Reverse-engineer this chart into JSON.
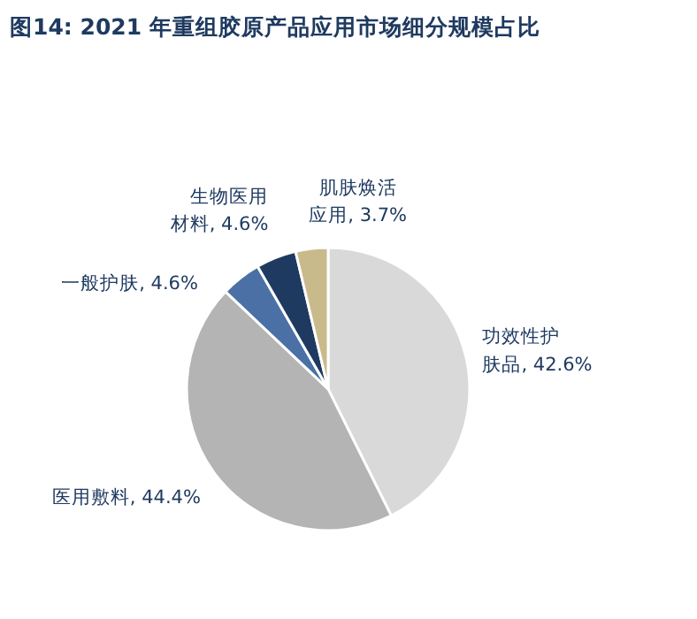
{
  "chart_data": {
    "type": "pie",
    "title": "图14:  2021 年重组胶原产品应用市场细分规模占比",
    "categories": [
      "功效性护肤品",
      "医用敷料",
      "一般护肤",
      "生物医用材料",
      "肌肤焕活应用"
    ],
    "values": [
      42.6,
      44.4,
      4.6,
      4.6,
      3.7
    ],
    "value_labels": [
      "42.6%",
      "44.4%",
      "4.6%",
      "4.6%",
      "3.7%"
    ],
    "colors": [
      "#d9d9d9",
      "#b4b4b4",
      "#4a70a6",
      "#1f3a60",
      "#c9ba8c"
    ],
    "legend": false
  }
}
